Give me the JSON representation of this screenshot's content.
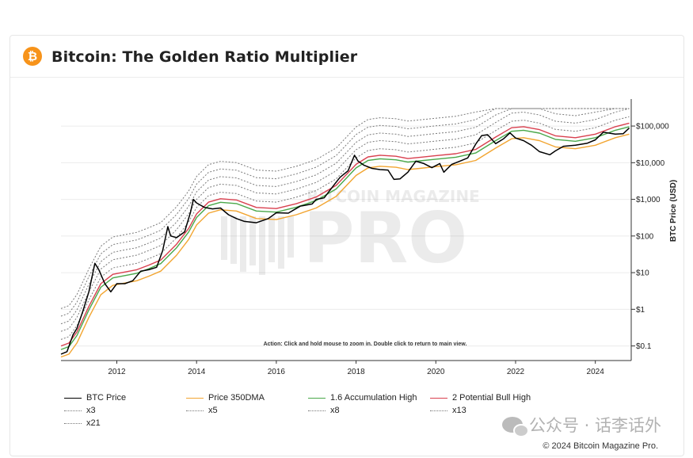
{
  "header": {
    "logo_symbol": "₿",
    "title": "Bitcoin: The Golden Ratio Multiplier"
  },
  "watermark": {
    "top": "BITCOIN MAGAZINE",
    "main": "PRO"
  },
  "footer": {
    "wechat_text": "公众号 · 话李话外",
    "copyright": "© 2024 Bitcoin Magazine Pro."
  },
  "chart_data": {
    "type": "line",
    "title": "Bitcoin: The Golden Ratio Multiplier",
    "ylabel": "BTC Price (USD)",
    "yscale": "log",
    "ylim": [
      0.04,
      300000
    ],
    "xlim": [
      2010.6,
      2024.9
    ],
    "y_ticks": [
      0.1,
      1,
      10,
      100,
      1000,
      10000,
      100000
    ],
    "y_tick_labels": [
      "$0.1",
      "$1",
      "$10",
      "$100",
      "$1,000",
      "$10,000",
      "$100,000"
    ],
    "x_ticks": [
      2012,
      2014,
      2016,
      2018,
      2020,
      2022,
      2024
    ],
    "x_tick_labels": [
      "2012",
      "2014",
      "2016",
      "2018",
      "2020",
      "2022",
      "2024"
    ],
    "annotation": "Action: Click and hold mouse to zoom in.  Double click to return to main view.",
    "colors": {
      "btc": "#000000",
      "dma": "#f2a531",
      "acc": "#4aa84a",
      "bull": "#d9404f",
      "mult": "#7a7a7a",
      "grid": "#ebebeb",
      "axis": "#333333"
    },
    "series": [
      {
        "name": "BTC Price",
        "key": "btc",
        "style": "solid",
        "x": [
          2010.6,
          2010.75,
          2010.9,
          2011.0,
          2011.15,
          2011.3,
          2011.45,
          2011.55,
          2011.7,
          2011.85,
          2012.0,
          2012.2,
          2012.4,
          2012.6,
          2012.8,
          2013.0,
          2013.15,
          2013.28,
          2013.35,
          2013.5,
          2013.7,
          2013.85,
          2013.92,
          2014.0,
          2014.2,
          2014.4,
          2014.6,
          2014.8,
          2015.0,
          2015.2,
          2015.5,
          2015.8,
          2016.0,
          2016.3,
          2016.6,
          2016.9,
          2017.0,
          2017.2,
          2017.45,
          2017.6,
          2017.8,
          2017.96,
          2018.05,
          2018.2,
          2018.4,
          2018.6,
          2018.8,
          2018.95,
          2019.1,
          2019.3,
          2019.5,
          2019.7,
          2019.9,
          2020.1,
          2020.2,
          2020.4,
          2020.6,
          2020.8,
          2021.0,
          2021.15,
          2021.3,
          2021.5,
          2021.7,
          2021.86,
          2022.0,
          2022.2,
          2022.4,
          2022.6,
          2022.86,
          2023.0,
          2023.2,
          2023.5,
          2023.8,
          2024.0,
          2024.2,
          2024.5,
          2024.7,
          2024.85
        ],
        "values": [
          0.06,
          0.07,
          0.2,
          0.3,
          0.9,
          3,
          18,
          12,
          5,
          3,
          5,
          5,
          6,
          11,
          12,
          14,
          40,
          180,
          100,
          90,
          130,
          450,
          1000,
          800,
          600,
          550,
          580,
          380,
          300,
          250,
          230,
          300,
          430,
          420,
          650,
          750,
          1000,
          1100,
          2500,
          4000,
          6000,
          16000,
          11000,
          8500,
          7000,
          6500,
          6300,
          3500,
          3600,
          5500,
          11000,
          9500,
          7300,
          9500,
          5500,
          9000,
          11000,
          13500,
          32000,
          55000,
          58000,
          33000,
          45000,
          65000,
          47000,
          40000,
          30000,
          20000,
          16500,
          21000,
          28000,
          30000,
          34000,
          42000,
          68000,
          60000,
          62000,
          88000
        ]
      },
      {
        "name": "Price 350DMA",
        "key": "dma",
        "style": "solid",
        "x": [
          2010.6,
          2010.8,
          2011.0,
          2011.3,
          2011.6,
          2011.9,
          2012.2,
          2012.5,
          2012.8,
          2013.1,
          2013.5,
          2013.8,
          2014.0,
          2014.3,
          2014.6,
          2015.0,
          2015.5,
          2016.0,
          2016.5,
          2017.0,
          2017.5,
          2018.0,
          2018.3,
          2018.6,
          2019.0,
          2019.3,
          2019.6,
          2020.0,
          2020.5,
          2021.0,
          2021.5,
          2021.9,
          2022.2,
          2022.6,
          2023.0,
          2023.5,
          2024.0,
          2024.5,
          2024.85
        ],
        "values": [
          0.05,
          0.06,
          0.12,
          0.6,
          2.5,
          4.5,
          5.2,
          6,
          8,
          11,
          30,
          80,
          200,
          420,
          520,
          480,
          300,
          280,
          380,
          580,
          1200,
          4500,
          7200,
          8000,
          7500,
          6500,
          7000,
          7800,
          8800,
          11500,
          25000,
          45000,
          48000,
          40000,
          27000,
          24000,
          30000,
          48000,
          60000
        ]
      },
      {
        "name": "1.6 Accumulation High",
        "key": "acc",
        "style": "solid",
        "mult": 1.6,
        "of": "dma"
      },
      {
        "name": "2 Potential Bull High",
        "key": "bull",
        "style": "solid",
        "mult": 2,
        "of": "dma"
      },
      {
        "name": "x3",
        "key": "mult",
        "style": "dotted",
        "mult": 3,
        "of": "dma"
      },
      {
        "name": "x5",
        "key": "mult",
        "style": "dotted",
        "mult": 5,
        "of": "dma"
      },
      {
        "name": "x8",
        "key": "mult",
        "style": "dotted",
        "mult": 8,
        "of": "dma"
      },
      {
        "name": "x13",
        "key": "mult",
        "style": "dotted",
        "mult": 13,
        "of": "dma"
      },
      {
        "name": "x21",
        "key": "mult",
        "style": "dotted",
        "mult": 21,
        "of": "dma"
      }
    ]
  }
}
